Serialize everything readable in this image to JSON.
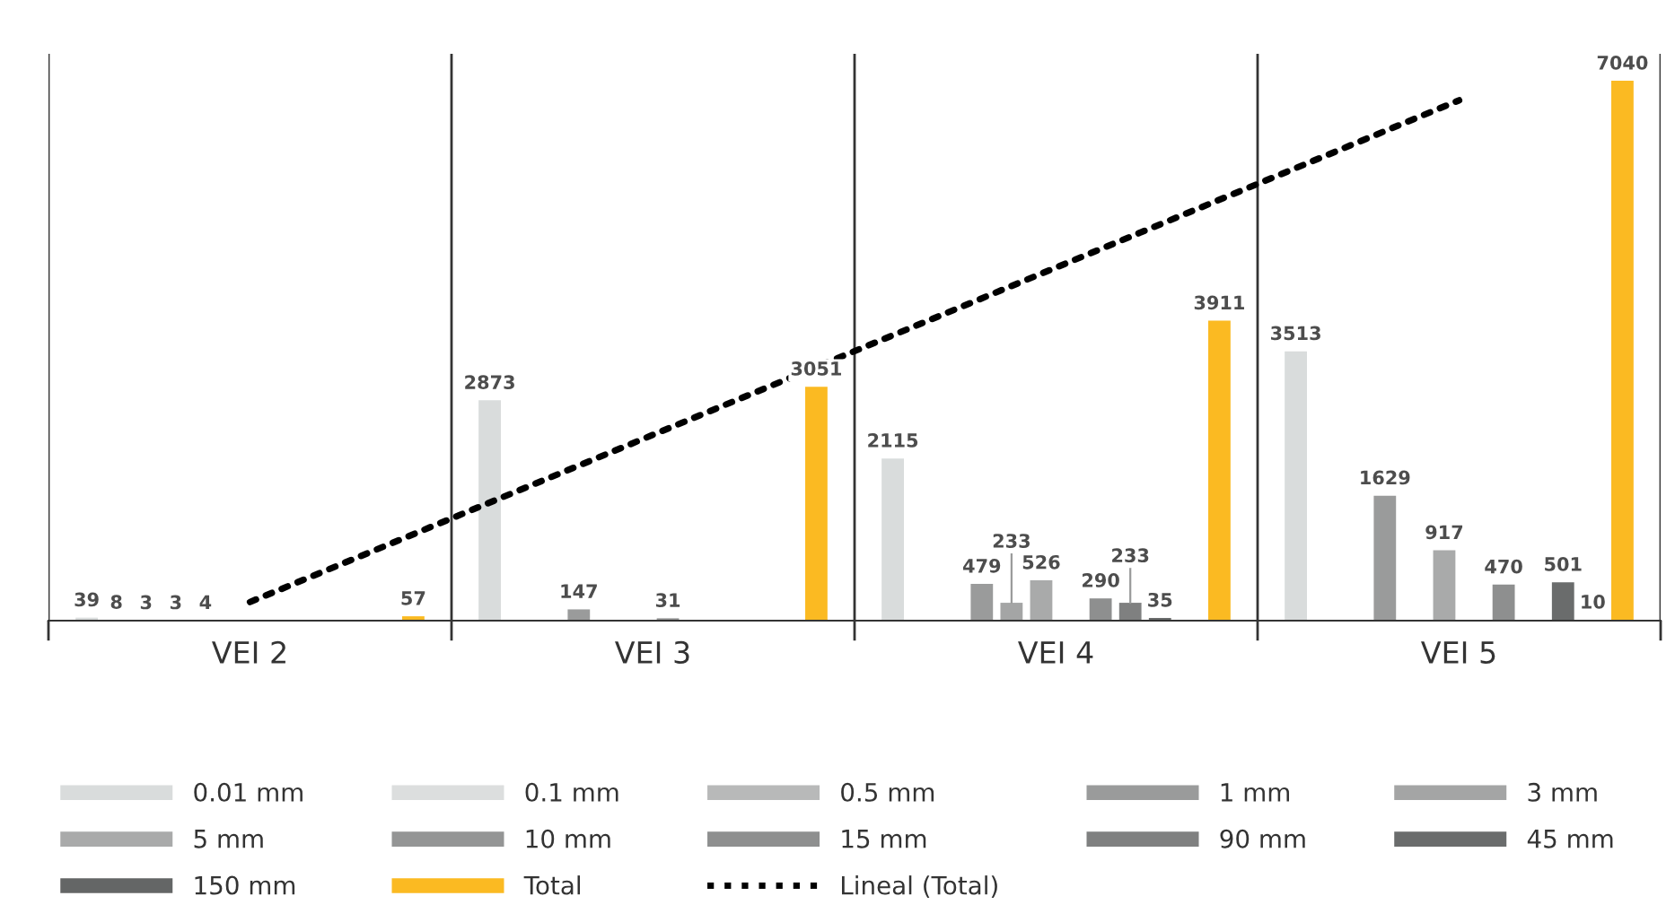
{
  "chart_data": {
    "type": "bar",
    "categories": [
      "VEI 2",
      "VEI 3",
      "VEI 4",
      "VEI 5"
    ],
    "series": [
      {
        "name": "0.01 mm",
        "color": "#d9dcdc",
        "values": [
          39,
          2873,
          2115,
          3513
        ]
      },
      {
        "name": "0.1 mm",
        "color": "#dcdede",
        "values": [
          8,
          null,
          null,
          null
        ]
      },
      {
        "name": "0.5 mm",
        "color": "#b8b9b9",
        "values": [
          3,
          null,
          null,
          null
        ]
      },
      {
        "name": "1 mm",
        "color": "#9a9b9b",
        "values": [
          3,
          147,
          479,
          1629
        ]
      },
      {
        "name": "3 mm",
        "color": "#a4a5a5",
        "values": [
          4,
          null,
          233,
          null
        ]
      },
      {
        "name": "5 mm",
        "color": "#a9aaaa",
        "values": [
          null,
          null,
          526,
          917
        ]
      },
      {
        "name": "10 mm",
        "color": "#949595",
        "values": [
          null,
          31,
          null,
          null
        ]
      },
      {
        "name": "15 mm",
        "color": "#8e8f8f",
        "values": [
          null,
          null,
          290,
          470
        ]
      },
      {
        "name": "90 mm",
        "color": "#7f8080",
        "values": [
          null,
          null,
          233,
          null
        ]
      },
      {
        "name": "45 mm",
        "color": "#6a6c6c",
        "values": [
          null,
          null,
          35,
          501
        ]
      },
      {
        "name": "150 mm",
        "color": "#646666",
        "values": [
          null,
          null,
          null,
          10
        ]
      },
      {
        "name": "Total",
        "color": "#fbba22",
        "values": [
          57,
          3051,
          3911,
          7040
        ]
      },
      {
        "name": "Lineal (Total)",
        "type": "line",
        "color": "#000000",
        "values": [
          243,
          2424,
          4605,
          6786
        ],
        "value_labels": [
          null,
          null,
          null,
          null
        ]
      }
    ],
    "line_style": "dotted",
    "data_labels": true,
    "legend": "bottom",
    "grid": "x"
  }
}
